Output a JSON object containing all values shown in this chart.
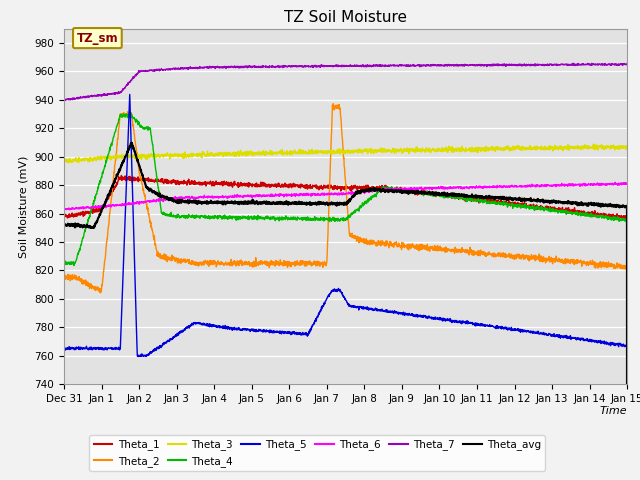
{
  "title": "TZ Soil Moisture",
  "xlabel": "Time",
  "ylabel": "Soil Moisture (mV)",
  "ylim": [
    740,
    990
  ],
  "background_color": "#e0e0e0",
  "fig_facecolor": "#f5f5f5",
  "legend_entries": [
    "Theta_1",
    "Theta_2",
    "Theta_3",
    "Theta_4",
    "Theta_5",
    "Theta_6",
    "Theta_7",
    "Theta_avg"
  ],
  "legend_colors": [
    "#cc0000",
    "#ff8800",
    "#dddd00",
    "#00bb00",
    "#0000dd",
    "#ff00ff",
    "#9900bb",
    "#000000"
  ],
  "box_label": "TZ_sm",
  "box_facecolor": "#ffffcc",
  "box_edgecolor": "#aa8800",
  "box_textcolor": "#880000",
  "title_fontsize": 11,
  "axis_label_fontsize": 8,
  "tick_fontsize": 7.5
}
